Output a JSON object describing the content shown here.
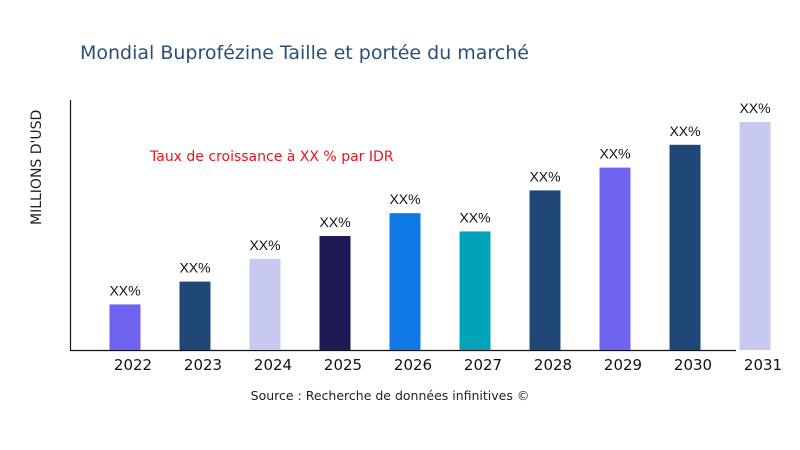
{
  "chart_data": {
    "type": "bar",
    "title": "Mondial Buprofézine Taille et portée du marché",
    "ylabel": "MILLIONS D'USD",
    "xlabel": "",
    "annotation": "Taux de croissance à XX % par IDR",
    "source": "Source : Recherche de données infinitives ©",
    "categories": [
      "2022",
      "2023",
      "2024",
      "2025",
      "2026",
      "2027",
      "2028",
      "2029",
      "2030",
      "2031"
    ],
    "values": [
      20,
      30,
      40,
      50,
      60,
      52,
      70,
      80,
      90,
      100
    ],
    "value_note": "relative bar heights; no y scale is printed",
    "data_labels": [
      "XX%",
      "XX%",
      "XX%",
      "XX%",
      "XX%",
      "XX%",
      "XX%",
      "XX%",
      "XX%",
      "XX%"
    ],
    "colors": [
      "#7063f0",
      "#1f4878",
      "#c8c9f0",
      "#1e1a56",
      "#0f7ae5",
      "#00a3b8",
      "#1f4878",
      "#7063f0",
      "#1f4878",
      "#c8c9f0"
    ],
    "ylim": [
      0,
      100
    ],
    "grid": false,
    "legend": "none",
    "title_color": "#2a5078",
    "annotation_color": "#e8141c"
  }
}
